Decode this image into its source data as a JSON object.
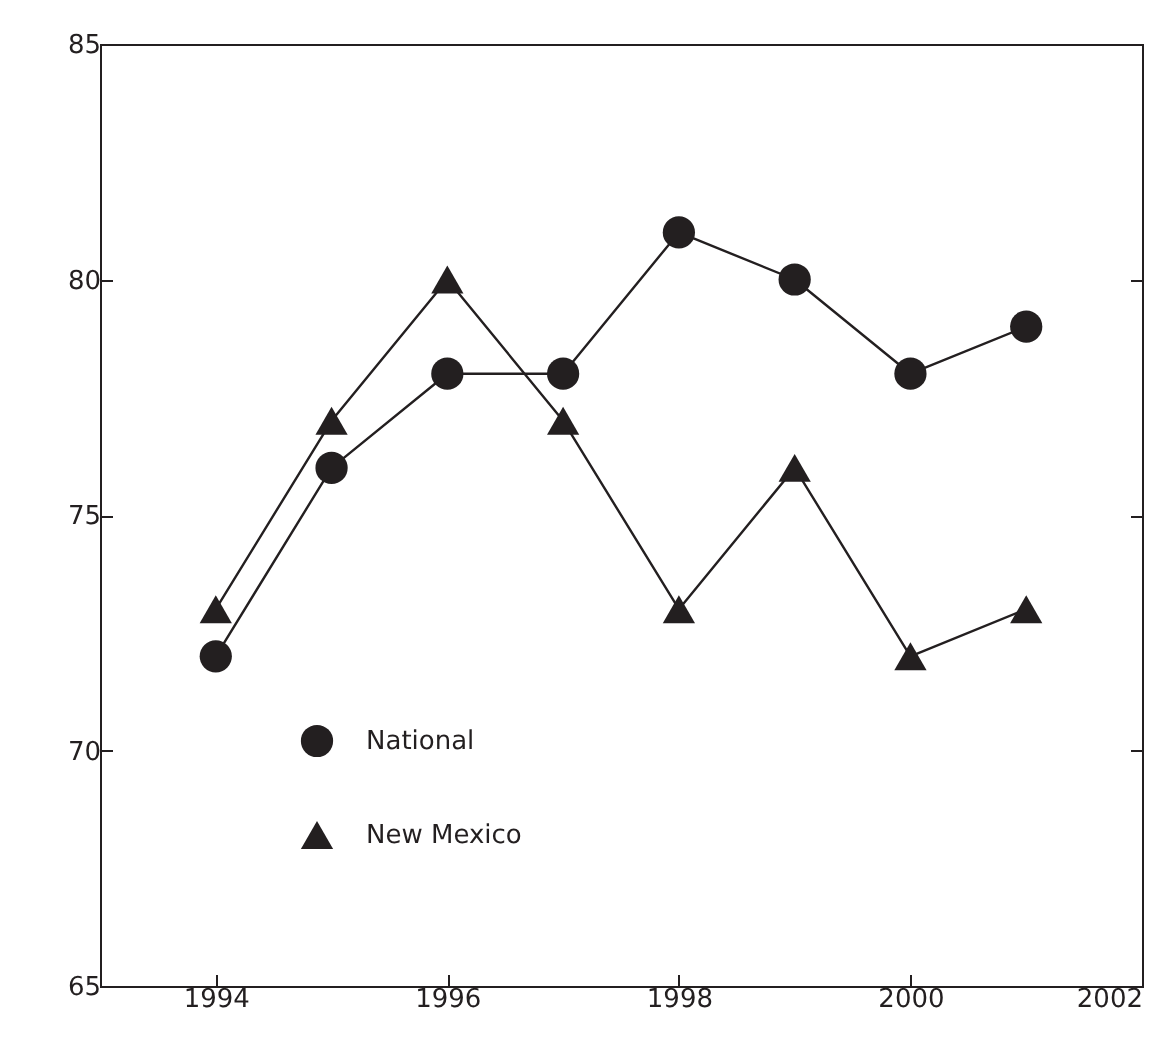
{
  "chart_data": {
    "type": "line",
    "x": [
      1994,
      1995,
      1996,
      1997,
      1998,
      1999,
      2000,
      2001
    ],
    "series": [
      {
        "name": "National",
        "color": "#231f20",
        "marker": "circle",
        "values": [
          72,
          76,
          78,
          78,
          81,
          80,
          78,
          79
        ]
      },
      {
        "name": "New  Mexico",
        "color": "#231f20",
        "marker": "triangle",
        "values": [
          73,
          77,
          80,
          77,
          73,
          76,
          72,
          73
        ]
      }
    ],
    "xlim": [
      1993,
      2002
    ],
    "xticks": [
      1994,
      1996,
      1998,
      2000,
      2002
    ],
    "ylim": [
      65,
      85
    ],
    "yticks": [
      65,
      70,
      75,
      80,
      85
    ],
    "grid": false,
    "legend": "bottom left",
    "line_style": "solid"
  }
}
